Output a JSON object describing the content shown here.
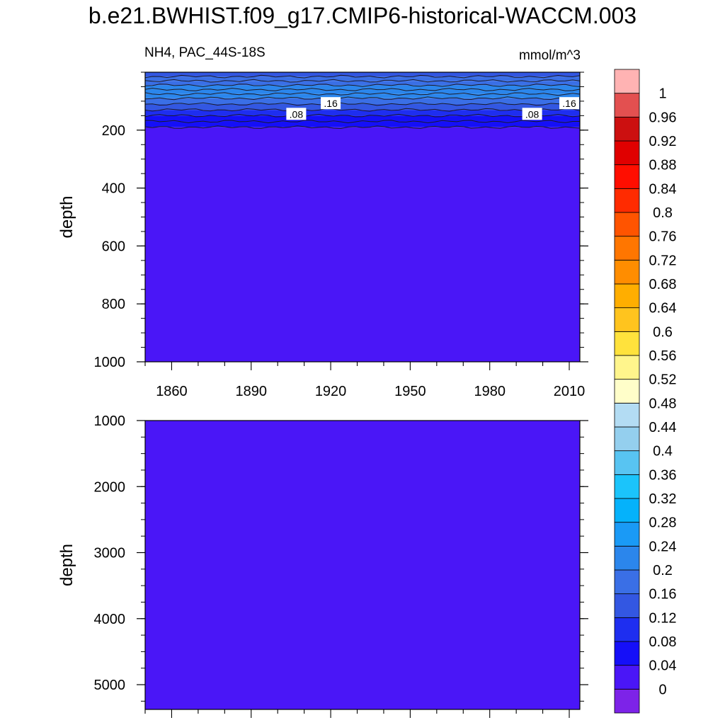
{
  "title": "b.e21.BWHIST.f09_g17.CMIP6-historical-WACCM.003",
  "subtitle_left": "NH4, PAC_44S-18S",
  "subtitle_right": "mmol/m^3",
  "chart_data": [
    {
      "type": "heatmap",
      "panel": "upper",
      "ylabel": "depth",
      "x_range": [
        1850,
        2014
      ],
      "x_ticks": [
        1860,
        1890,
        1920,
        1950,
        1980,
        2010
      ],
      "y_range": [
        0,
        1000
      ],
      "y_reversed": true,
      "y_ticks": [
        200,
        400,
        600,
        800,
        1000
      ],
      "layers": [
        {
          "depth_top": 0,
          "depth_bottom": 15,
          "value": 0.14
        },
        {
          "depth_top": 15,
          "depth_bottom": 30,
          "value": 0.18
        },
        {
          "depth_top": 30,
          "depth_bottom": 45,
          "value": 0.18
        },
        {
          "depth_top": 45,
          "depth_bottom": 60,
          "value": 0.22
        },
        {
          "depth_top": 60,
          "depth_bottom": 75,
          "value": 0.21
        },
        {
          "depth_top": 75,
          "depth_bottom": 90,
          "value": 0.22
        },
        {
          "depth_top": 90,
          "depth_bottom": 110,
          "value": 0.18
        },
        {
          "depth_top": 110,
          "depth_bottom": 130,
          "value": 0.14
        },
        {
          "depth_top": 130,
          "depth_bottom": 150,
          "value": 0.1
        },
        {
          "depth_top": 150,
          "depth_bottom": 170,
          "value": 0.06
        },
        {
          "depth_top": 170,
          "depth_bottom": 190,
          "value": 0.05
        },
        {
          "depth_top": 190,
          "depth_bottom": 1000,
          "value": 0.02
        }
      ],
      "contour_labels": [
        {
          "text": ".08",
          "x": 1907,
          "depth": 145
        },
        {
          "text": ".16",
          "x": 1920,
          "depth": 108
        },
        {
          "text": ".08",
          "x": 1996,
          "depth": 145
        },
        {
          "text": ".16",
          "x": 2010,
          "depth": 108
        }
      ]
    },
    {
      "type": "heatmap",
      "panel": "lower",
      "ylabel": "depth",
      "x_range": [
        1850,
        2014
      ],
      "y_range": [
        1000,
        5375
      ],
      "y_reversed": true,
      "y_ticks": [
        1000,
        2000,
        3000,
        4000,
        5000
      ],
      "layers": [
        {
          "depth_top": 1000,
          "depth_bottom": 5375,
          "value": 0.02
        }
      ]
    }
  ],
  "colorbar": {
    "levels": [
      "0",
      "0.04",
      "0.08",
      "0.12",
      "0.16",
      "0.2",
      "0.24",
      "0.28",
      "0.32",
      "0.36",
      "0.4",
      "0.44",
      "0.48",
      "0.52",
      "0.56",
      "0.6",
      "0.64",
      "0.68",
      "0.72",
      "0.76",
      "0.8",
      "0.84",
      "0.88",
      "0.92",
      "0.96",
      "1"
    ],
    "colors": [
      "#7d23e8",
      "#4a16f7",
      "#150ff8",
      "#1e2ef0",
      "#3357e2",
      "#3a6fe6",
      "#2b86ec",
      "#1a9af6",
      "#05b2fb",
      "#1bc4fb",
      "#58c4f2",
      "#94cfee",
      "#b3dcf3",
      "#fffec9",
      "#fff58c",
      "#ffe23c",
      "#ffc41e",
      "#ffae00",
      "#ff8d00",
      "#ff7600",
      "#ff5400",
      "#ff2b00",
      "#ff0e00",
      "#e00000",
      "#cc1010",
      "#e35050",
      "#ffb3b3"
    ]
  }
}
